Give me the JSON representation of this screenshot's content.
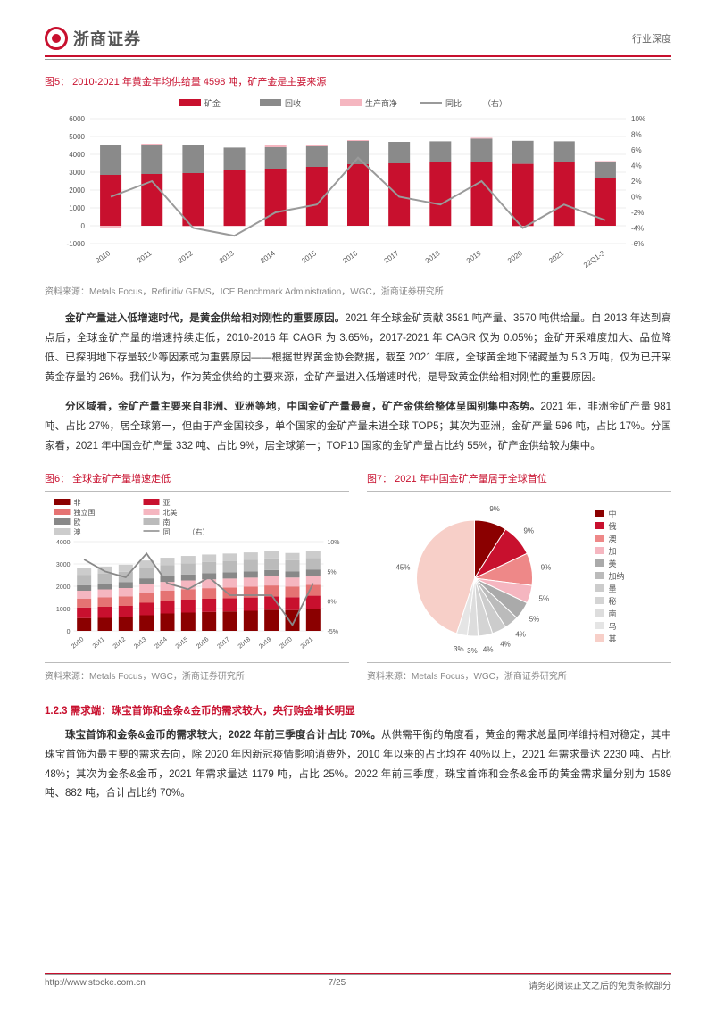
{
  "header": {
    "brand": "浙商证券",
    "category": "行业深度"
  },
  "fig5": {
    "title": "图5： 2010-2021 年黄金年均供给量 4598 吨，矿产金是主要来源",
    "legend": [
      "矿金",
      "回收",
      "生产商净",
      "同比",
      "（右）"
    ],
    "legend_colors": [
      "#c8102e",
      "#8a8a8a",
      "#f5b6c0",
      "#9a9a9a"
    ],
    "source": "资料来源：Metals Focus，Refinitiv GFMS，ICE Benchmark Administration，WGC，浙商证券研究所",
    "years": [
      "2010",
      "2011",
      "2012",
      "2013",
      "2014",
      "2015",
      "2016",
      "2017",
      "2018",
      "2019",
      "2020",
      "2021",
      "22Q1-3"
    ],
    "y1_ticks": [
      "-1000",
      "0",
      "1000",
      "2000",
      "3000",
      "4000",
      "5000",
      "6000"
    ],
    "y2_ticks": [
      "-6%",
      "-4%",
      "-2%",
      "0%",
      "2%",
      "4%",
      "6%",
      "8%",
      "10%"
    ],
    "mine": [
      2850,
      2900,
      2950,
      3100,
      3200,
      3300,
      3450,
      3500,
      3550,
      3580,
      3470,
      3581,
      2700
    ],
    "recycle": [
      1700,
      1650,
      1600,
      1280,
      1200,
      1150,
      1300,
      1200,
      1180,
      1300,
      1290,
      1150,
      900
    ],
    "hedge": [
      -100,
      50,
      -50,
      -30,
      100,
      50,
      50,
      -30,
      -20,
      50,
      -50,
      -30,
      30
    ],
    "growth": [
      0,
      2,
      -4,
      -5,
      -2,
      -1,
      5,
      0,
      -1,
      2,
      -4,
      -1,
      -3
    ]
  },
  "para1": "金矿产量进入低增速时代，是黄金供给相对刚性的重要原因。2021 年全球金矿贡献 3581 吨产量、3570 吨供给量。自 2013 年达到高点后，全球金矿产量的增速持续走低，2010-2016 年 CAGR 为 3.65%，2017-2021 年 CAGR 仅为 0.05%；金矿开采难度加大、品位降低、已探明地下存量较少等因素或为重要原因——根据世界黄金协会数据，截至 2021 年底，全球黄金地下储藏量为 5.3 万吨，仅为已开采黄金存量的 26%。我们认为，作为黄金供给的主要来源，金矿产量进入低增速时代，是导致黄金供给相对刚性的重要原因。",
  "para1_bold": "金矿产量进入低增速时代，是黄金供给相对刚性的重要原因。",
  "para2": "分区域看，金矿产量主要来自非洲、亚洲等地，中国金矿产量最高，矿产金供给整体呈国别集中态势。2021 年，非洲金矿产量 981 吨、占比 27%，居全球第一，但由于产金国较多，单个国家的金矿产量未进全球 TOP5；其次为亚洲，金矿产量 596 吨，占比 17%。分国家看，2021 年中国金矿产量 332 吨、占比 9%，居全球第一；TOP10 国家的金矿产量占比约 55%，矿产金供给较为集中。",
  "para2_bold": "分区域看，金矿产量主要来自非洲、亚洲等地，中国金矿产量最高，矿产金供给整体呈国别集中态势。",
  "fig6": {
    "title": "图6： 全球金矿产量增速走低",
    "legend": [
      "非",
      "亚",
      "独立国",
      "北美",
      "欧",
      "南",
      "澳",
      "同",
      "（右）"
    ],
    "legend_colors": [
      "#8b0000",
      "#c8102e",
      "#e57373",
      "#f5b6c0",
      "#888",
      "#bbb",
      "#ccc",
      "#888"
    ],
    "source": "资料来源：Metals Focus，WGC，浙商证券研究所",
    "years": [
      "2010",
      "2011",
      "2012",
      "2013",
      "2014",
      "2015",
      "2016",
      "2017",
      "2018",
      "2019",
      "2020",
      "2021"
    ],
    "y1_ticks": [
      "0",
      "1000",
      "2000",
      "3000",
      "4000"
    ],
    "y2_ticks": [
      "-5%",
      "0%",
      "5%",
      "10%"
    ],
    "stacks": [
      [
        570,
        580,
        600,
        700,
        780,
        820,
        850,
        870,
        900,
        950,
        930,
        981
      ],
      [
        480,
        500,
        520,
        560,
        570,
        580,
        590,
        595,
        596,
        596,
        580,
        596
      ],
      [
        400,
        420,
        430,
        450,
        460,
        470,
        475,
        480,
        485,
        490,
        480,
        490
      ],
      [
        350,
        360,
        370,
        380,
        385,
        390,
        395,
        400,
        405,
        410,
        400,
        410
      ],
      [
        250,
        255,
        260,
        265,
        268,
        270,
        272,
        274,
        276,
        278,
        270,
        275
      ],
      [
        450,
        460,
        470,
        480,
        490,
        500,
        510,
        515,
        520,
        525,
        510,
        515
      ],
      [
        300,
        310,
        315,
        320,
        325,
        328,
        330,
        332,
        334,
        336,
        320,
        325
      ]
    ],
    "growth": [
      7,
      5,
      4,
      8,
      3,
      2,
      4,
      1,
      1,
      1,
      -4,
      3
    ]
  },
  "fig7": {
    "title": "图7： 2021 年中国金矿产量居于全球首位",
    "source": "资料来源：Metals Focus，WGC，浙商证券研究所",
    "slices": [
      {
        "label": "中",
        "value": 9,
        "color": "#8b0000"
      },
      {
        "label": "俄",
        "value": 9,
        "color": "#c8102e"
      },
      {
        "label": "澳",
        "value": 9,
        "color": "#e88"
      },
      {
        "label": "加",
        "value": 5,
        "color": "#f5b6c0"
      },
      {
        "label": "美",
        "value": 5,
        "color": "#aaa"
      },
      {
        "label": "加纳",
        "value": 4,
        "color": "#bbb"
      },
      {
        "label": "墨",
        "value": 4,
        "color": "#ccc"
      },
      {
        "label": "秘",
        "value": 4,
        "color": "#d4d4d4"
      },
      {
        "label": "南",
        "value": 3,
        "color": "#ddd"
      },
      {
        "label": "乌",
        "value": 3,
        "color": "#e5e5e5"
      },
      {
        "label": "其",
        "value": 45,
        "color": "#f7cfc8"
      }
    ],
    "outer_labels": [
      "9%",
      "9%",
      "9%",
      "5%",
      "5%",
      "4%",
      "4%",
      "3% 3% 4%",
      "45%"
    ],
    "legend_items": [
      "中",
      "俄",
      "澳",
      "加",
      "美",
      "加纳",
      "墨",
      "秘",
      "南",
      "乌",
      "其"
    ]
  },
  "section_title": "1.2.3 需求端：珠宝首饰和金条&金币的需求较大，央行购金增长明显",
  "para3": "珠宝首饰和金条&金币的需求较大，2022 年前三季度合计占比 70%。从供需平衡的角度看，黄金的需求总量同样维持相对稳定，其中珠宝首饰为最主要的需求去向，除 2020 年因新冠疫情影响消费外，2010 年以来的占比均在 40%以上，2021 年需求量达 2230 吨、占比 48%；其次为金条&金币，2021 年需求量达 1179 吨，占比 25%。2022 年前三季度，珠宝首饰和金条&金币的黄金需求量分别为 1589 吨、882 吨，合计占比约 70%。",
  "para3_bold": "珠宝首饰和金条&金币的需求较大，2022 年前三季度合计占比 70%。",
  "footer": {
    "url": "http://www.stocke.com.cn",
    "page": "7/25",
    "disclaimer": "请务必阅读正文之后的免责条款部分"
  }
}
